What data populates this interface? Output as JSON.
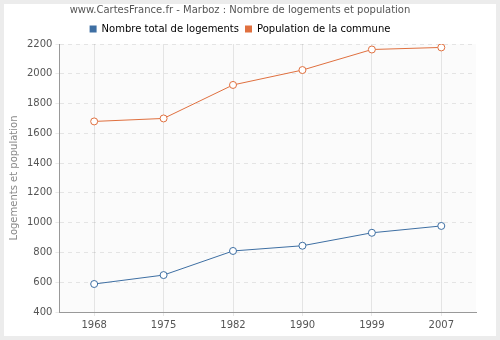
{
  "chart_data": {
    "type": "line",
    "title": "www.CartesFrance.fr - Marboz : Nombre de logements et population",
    "y_label": "Logements et population",
    "categories": [
      "1968",
      "1975",
      "1982",
      "1990",
      "1999",
      "2007"
    ],
    "series": [
      {
        "name": "Nombre total de logements",
        "color": "#3e6fa3",
        "values": [
          588,
          648,
          810,
          845,
          932,
          978
        ]
      },
      {
        "name": "Population de la commune",
        "color": "#e0703f",
        "values": [
          1680,
          1700,
          1925,
          2025,
          2163,
          2177
        ]
      }
    ],
    "ylim": [
      400,
      2200
    ],
    "yticks": [
      400,
      600,
      800,
      1000,
      1200,
      1400,
      1600,
      1800,
      2000,
      2200
    ],
    "grid": true,
    "legend": "top",
    "marker": "circle"
  }
}
